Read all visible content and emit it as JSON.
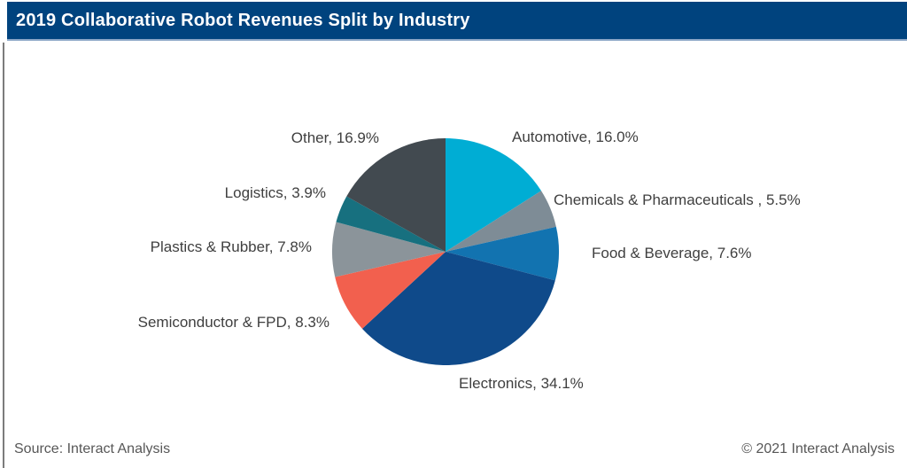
{
  "header": {
    "title": "2019 Collaborative Robot Revenues Split by Industry"
  },
  "colors": {
    "header_bg": "#00437E",
    "header_underline": "#8aa5c6",
    "label_text": "#3f3f3f",
    "footer_text": "#575757",
    "left_border": "#7c7c7c"
  },
  "chart_data": {
    "type": "pie",
    "title": "2019 Collaborative Robot Revenues Split by Industry",
    "unit": "%",
    "start_angle_deg": 0,
    "direction": "clockwise",
    "legend_position": "outside-labels",
    "slices": [
      {
        "label": "Automotive",
        "value": 16.0,
        "color": "#00ADD4",
        "label_text": "Automotive, 16.0%"
      },
      {
        "label": "Chemicals & Pharmaceuticals",
        "value": 5.5,
        "color": "#7E8C96",
        "label_text": "Chemicals & Pharmaceuticals , 5.5%"
      },
      {
        "label": "Food & Beverage",
        "value": 7.6,
        "color": "#1273B0",
        "label_text": "Food & Beverage, 7.6%"
      },
      {
        "label": "Electronics",
        "value": 34.1,
        "color": "#0F4A8A",
        "label_text": "Electronics, 34.1%"
      },
      {
        "label": "Semiconductor & FPD",
        "value": 8.3,
        "color": "#F2604E",
        "label_text": "Semiconductor & FPD, 8.3%"
      },
      {
        "label": "Plastics & Rubber",
        "value": 7.8,
        "color": "#8B949A",
        "label_text": "Plastics & Rubber, 7.8%"
      },
      {
        "label": "Logistics",
        "value": 3.9,
        "color": "#17707F",
        "label_text": "Logistics, 3.9%"
      },
      {
        "label": "Other",
        "value": 16.9,
        "color": "#424A50",
        "label_text": "Other, 16.9%"
      }
    ]
  },
  "footer": {
    "source": "Source: Interact Analysis",
    "copyright": "© 2021 Interact Analysis"
  }
}
